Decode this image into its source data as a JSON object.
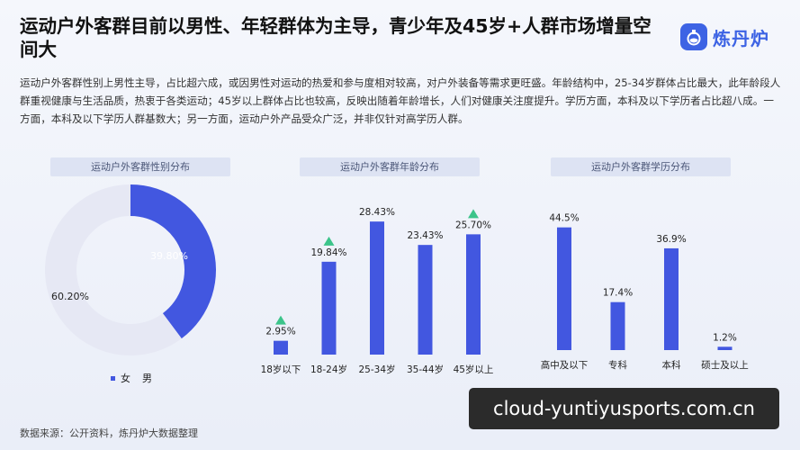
{
  "header": {
    "title": "运动户外客群目前以男性、年轻群体为主导，青少年及45岁+人群市场增量空间大",
    "brand_name": "炼丹炉",
    "brand_icon": "flask-logo-icon"
  },
  "description": "运动户外客群性别上男性主导，占比超六成，或因男性对运动的热爱和参与度相对较高，对户外装备等需求更旺盛。年龄结构中，25-34岁群体占比最大，此年龄段人群重视健康与生活品质，热衷于各类运动；45岁以上群体占比也较高，反映出随着年龄增长，人们对健康关注度提升。学历方面，本科及以下学历者占比超八成。一方面，本科及以下学历人群基数大；另一方面，运动户外产品受众广泛，并非仅针对高学历人群。",
  "source": "数据来源：公开资料，炼丹炉大数据整理",
  "watermark": "cloud-yuntiyusports.com.cn",
  "colors": {
    "bar": "#4257e0",
    "pie_light": "#e6e8f4",
    "arrow": "#3cc48a",
    "header_bg": "#dde3f3"
  },
  "chart_data": [
    {
      "type": "pie",
      "title": "运动户外客群性别分布",
      "slices": [
        {
          "label": "女",
          "value": 39.8,
          "value_label": "39.80%",
          "color": "#4257e0"
        },
        {
          "label": "男",
          "value": 60.2,
          "value_label": "60.20%",
          "color": "#e6e8f4"
        }
      ],
      "legend": [
        "女",
        "男"
      ]
    },
    {
      "type": "bar",
      "title": "运动户外客群年龄分布",
      "categories": [
        "18岁以下",
        "18-24岁",
        "25-34岁",
        "35-44岁",
        "45岁以上"
      ],
      "values": [
        2.95,
        19.84,
        28.43,
        23.43,
        25.7
      ],
      "value_labels": [
        "2.95%",
        "19.84%",
        "28.43%",
        "23.43%",
        "25.70%"
      ],
      "highlighted": [
        true,
        true,
        false,
        false,
        true
      ],
      "ylim": [
        0,
        30
      ]
    },
    {
      "type": "bar",
      "title": "运动户外客群学历分布",
      "categories": [
        "高中及以下",
        "专科",
        "本科",
        "硕士及以上"
      ],
      "values": [
        44.5,
        17.4,
        36.9,
        1.2
      ],
      "value_labels": [
        "44.5%",
        "17.4%",
        "36.9%",
        "1.2%"
      ],
      "ylim": [
        0,
        47
      ]
    }
  ]
}
